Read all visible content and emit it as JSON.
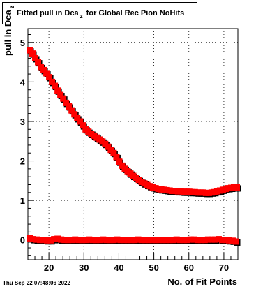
{
  "title": {
    "main": "Fitted pull in Dca",
    "sub": "z",
    "rest": " for Global Rec Pion NoHits"
  },
  "footer": "Thu Sep 22 07:48:06 2022",
  "chart_data": {
    "type": "scatter",
    "xlabel": "No. of Fit Points",
    "ylabel": {
      "main": "pull in Dca",
      "sub": "z"
    },
    "xlim": [
      14,
      74
    ],
    "ylim": [
      -0.5,
      5.35
    ],
    "x_ticks": [
      20,
      30,
      40,
      50,
      60,
      70
    ],
    "y_ticks": [
      0,
      1,
      2,
      3,
      4,
      5
    ],
    "grid": true,
    "colors": {
      "primary": "#ff0000",
      "shadow": "#000000"
    },
    "series": [
      {
        "points": [
          [
            14.5,
            4.8
          ],
          [
            15.3,
            4.72
          ],
          [
            16.1,
            4.6
          ],
          [
            16.9,
            4.5
          ],
          [
            17.7,
            4.38
          ],
          [
            18.5,
            4.3
          ],
          [
            19.3,
            4.22
          ],
          [
            20.1,
            4.12
          ],
          [
            20.9,
            4.0
          ],
          [
            21.7,
            3.9
          ],
          [
            22.5,
            3.78
          ],
          [
            23.3,
            3.67
          ],
          [
            24.1,
            3.58
          ],
          [
            24.9,
            3.47
          ],
          [
            25.7,
            3.38
          ],
          [
            26.5,
            3.28
          ],
          [
            27.3,
            3.18
          ],
          [
            28.1,
            3.08
          ],
          [
            28.9,
            3.0
          ],
          [
            29.7,
            2.9
          ],
          [
            30.5,
            2.8
          ],
          [
            31.3,
            2.74
          ],
          [
            32.1,
            2.69
          ],
          [
            32.9,
            2.64
          ],
          [
            33.7,
            2.59
          ],
          [
            34.5,
            2.54
          ],
          [
            35.3,
            2.49
          ],
          [
            36.1,
            2.43
          ],
          [
            36.9,
            2.36
          ],
          [
            37.7,
            2.28
          ],
          [
            38.5,
            2.2
          ],
          [
            39.3,
            2.1
          ],
          [
            40.1,
            1.98
          ],
          [
            40.9,
            1.88
          ],
          [
            41.7,
            1.8
          ],
          [
            42.5,
            1.74
          ],
          [
            43.3,
            1.68
          ],
          [
            44.1,
            1.62
          ],
          [
            44.9,
            1.57
          ],
          [
            45.7,
            1.52
          ],
          [
            46.5,
            1.47
          ],
          [
            47.3,
            1.43
          ],
          [
            48.1,
            1.39
          ],
          [
            48.9,
            1.36
          ],
          [
            49.7,
            1.33
          ],
          [
            50.5,
            1.31
          ],
          [
            51.3,
            1.29
          ],
          [
            52.1,
            1.28
          ],
          [
            52.9,
            1.27
          ],
          [
            53.7,
            1.26
          ],
          [
            54.5,
            1.25
          ],
          [
            55.3,
            1.24
          ],
          [
            56.1,
            1.24
          ],
          [
            56.9,
            1.23
          ],
          [
            57.7,
            1.23
          ],
          [
            58.5,
            1.22
          ],
          [
            59.3,
            1.22
          ],
          [
            60.1,
            1.22
          ],
          [
            60.9,
            1.21
          ],
          [
            61.7,
            1.21
          ],
          [
            62.5,
            1.2
          ],
          [
            63.3,
            1.2
          ],
          [
            64.1,
            1.2
          ],
          [
            64.9,
            1.19
          ],
          [
            65.7,
            1.19
          ],
          [
            66.5,
            1.2
          ],
          [
            67.3,
            1.21
          ],
          [
            68.1,
            1.23
          ],
          [
            68.9,
            1.25
          ],
          [
            69.7,
            1.27
          ],
          [
            70.5,
            1.29
          ],
          [
            71.3,
            1.31
          ],
          [
            72.1,
            1.32
          ],
          [
            72.9,
            1.33
          ],
          [
            73.7,
            1.33
          ]
        ]
      },
      {
        "points": [
          [
            14.5,
            0.04
          ],
          [
            15.5,
            0.02
          ],
          [
            16.5,
            0.01
          ],
          [
            17.5,
            0.0
          ],
          [
            18.5,
            0.0
          ],
          [
            19.5,
            -0.01
          ],
          [
            20.5,
            -0.01
          ],
          [
            21.5,
            0.02
          ],
          [
            22.5,
            0.03
          ],
          [
            23.5,
            0.01
          ],
          [
            24.5,
            0.0
          ],
          [
            25.5,
            0.0
          ],
          [
            26.5,
            0.0
          ],
          [
            27.5,
            0.01
          ],
          [
            28.5,
            0.0
          ],
          [
            29.5,
            0.0
          ],
          [
            30.5,
            0.0
          ],
          [
            31.5,
            0.01
          ],
          [
            32.5,
            0.0
          ],
          [
            33.5,
            0.0
          ],
          [
            34.5,
            0.0
          ],
          [
            35.5,
            0.01
          ],
          [
            36.5,
            0.0
          ],
          [
            37.5,
            0.0
          ],
          [
            38.5,
            0.0
          ],
          [
            39.5,
            0.01
          ],
          [
            40.5,
            0.0
          ],
          [
            41.5,
            0.0
          ],
          [
            42.5,
            0.0
          ],
          [
            43.5,
            0.0
          ],
          [
            44.5,
            0.0
          ],
          [
            45.5,
            0.01
          ],
          [
            46.5,
            0.0
          ],
          [
            47.5,
            0.0
          ],
          [
            48.5,
            0.0
          ],
          [
            49.5,
            0.0
          ],
          [
            50.5,
            0.0
          ],
          [
            51.5,
            0.0
          ],
          [
            52.5,
            0.0
          ],
          [
            53.5,
            0.0
          ],
          [
            54.5,
            0.0
          ],
          [
            55.5,
            0.0
          ],
          [
            56.5,
            0.01
          ],
          [
            57.5,
            0.0
          ],
          [
            58.5,
            0.0
          ],
          [
            59.5,
            0.0
          ],
          [
            60.5,
            0.01
          ],
          [
            61.5,
            0.01
          ],
          [
            62.5,
            0.0
          ],
          [
            63.5,
            0.0
          ],
          [
            64.5,
            0.0
          ],
          [
            65.5,
            0.01
          ],
          [
            66.5,
            0.01
          ],
          [
            67.5,
            0.01
          ],
          [
            68.5,
            0.02
          ],
          [
            69.5,
            0.0
          ],
          [
            70.5,
            0.0
          ],
          [
            71.5,
            -0.01
          ],
          [
            72.5,
            -0.02
          ],
          [
            73.5,
            -0.04
          ]
        ]
      }
    ]
  }
}
